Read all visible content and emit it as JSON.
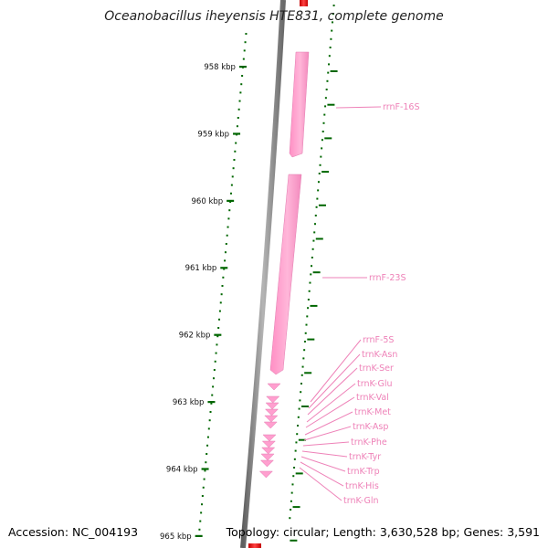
{
  "header": {
    "title": "Oceanobacillus iheyensis HTE831, complete genome"
  },
  "footer": {
    "accession": "Accession: NC_004193",
    "summary": "Topology: circular; Length: 3,630,528 bp; Genes: 3,591"
  },
  "colors": {
    "backbone": "#7f7f7f",
    "feature": "#ff99cc",
    "feature_dark": "#e986b6",
    "label": "#ee82b8",
    "ticks": "#006600",
    "red_marker": "#e60000"
  },
  "ticks": [
    {
      "label": "958 kbp",
      "kbp": 958
    },
    {
      "label": "959 kbp",
      "kbp": 959
    },
    {
      "label": "960 kbp",
      "kbp": 960
    },
    {
      "label": "961 kbp",
      "kbp": 961
    },
    {
      "label": "962 kbp",
      "kbp": 962
    },
    {
      "label": "963 kbp",
      "kbp": 963
    },
    {
      "label": "964 kbp",
      "kbp": 964
    },
    {
      "label": "965 kbp",
      "kbp": 965
    }
  ],
  "features": [
    {
      "name": "rrnF-16S"
    },
    {
      "name": "rrnF-23S"
    },
    {
      "name": "rrnF-5S"
    },
    {
      "name": "trnK-Asn"
    },
    {
      "name": "trnK-Ser"
    },
    {
      "name": "trnK-Glu"
    },
    {
      "name": "trnK-Val"
    },
    {
      "name": "trnK-Met"
    },
    {
      "name": "trnK-Asp"
    },
    {
      "name": "trnK-Phe"
    },
    {
      "name": "trnK-Tyr"
    },
    {
      "name": "trnK-Trp"
    },
    {
      "name": "trnK-His"
    },
    {
      "name": "trnK-Gln"
    }
  ]
}
